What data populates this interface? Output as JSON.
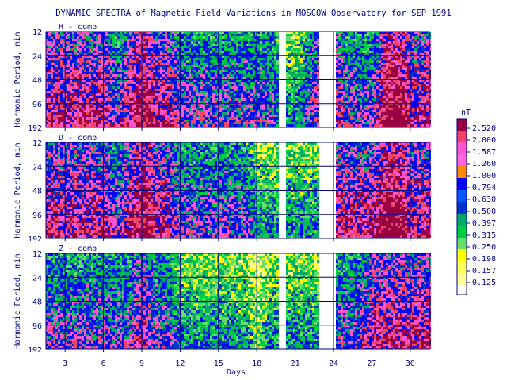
{
  "chart_data": {
    "type": "heatmap",
    "title": "DYNAMIC SPECTRA of Magnetic Field Variations in MOSCOW Observatory for SEP 1991",
    "xlabel": "Days",
    "ylabel": "Harmonic Period, min",
    "x_range": [
      1.5,
      31.5
    ],
    "x_ticks": [
      "3",
      "6",
      "9",
      "12",
      "15",
      "18",
      "21",
      "24",
      "27",
      "30"
    ],
    "y_ticks": [
      "12",
      "24",
      "48",
      "96",
      "192"
    ],
    "y_scale": "log2",
    "panels": [
      {
        "name": "H - comp",
        "day_intensity": [
          3,
          3,
          3,
          3,
          3,
          3,
          2,
          3,
          4,
          3,
          3,
          2,
          2,
          2,
          2,
          2,
          2,
          2,
          2,
          1,
          1,
          2,
          3,
          3,
          2,
          2,
          2,
          4,
          4,
          3,
          3
        ]
      },
      {
        "name": "D - comp",
        "day_intensity": [
          3,
          3,
          3,
          3,
          3,
          3,
          2,
          3,
          4,
          3,
          3,
          2,
          2,
          2,
          2,
          2,
          2,
          1,
          1,
          1,
          1,
          1,
          1,
          3,
          3,
          3,
          3,
          4,
          4,
          3,
          3
        ]
      },
      {
        "name": "Z - comp",
        "day_intensity": [
          2,
          2,
          2,
          2,
          2,
          2,
          2,
          2,
          3,
          2,
          2,
          1,
          1,
          1,
          1,
          1,
          1,
          0,
          1,
          1,
          1,
          1,
          1,
          2,
          2,
          2,
          3,
          3,
          3,
          3,
          3
        ]
      }
    ],
    "data_gaps_days": [
      [
        19.6,
        20.1
      ],
      [
        22.8,
        24.0
      ]
    ],
    "colorbar": {
      "unit": "nT",
      "levels": [
        "2.520",
        "2.000",
        "1.587",
        "1.260",
        "1.000",
        "0.794",
        "0.630",
        "0.500",
        "0.397",
        "0.315",
        "0.250",
        "0.198",
        "0.157",
        "0.125"
      ],
      "colors": [
        "#990044",
        "#ee4466",
        "#ff55cc",
        "#ff66dd",
        "#ff8800",
        "#0000ff",
        "#0055ff",
        "#0033cc",
        "#00aa66",
        "#00cc44",
        "#66dd66",
        "#ffff00",
        "#ffff55",
        "#ffff99"
      ]
    },
    "grid": true
  }
}
